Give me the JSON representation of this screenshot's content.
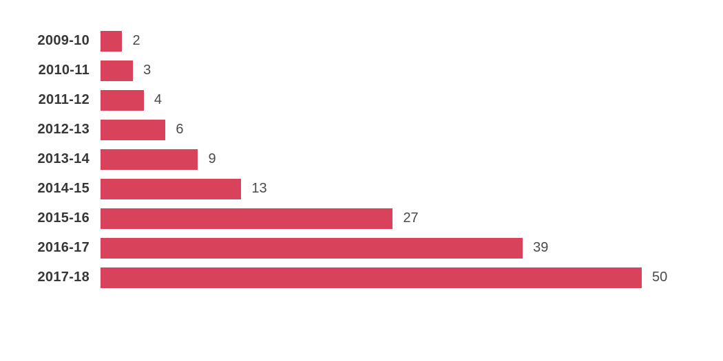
{
  "chart_data": {
    "type": "bar",
    "orientation": "horizontal",
    "title": "",
    "xlabel": "",
    "ylabel": "",
    "categories": [
      "2009-10",
      "2010-11",
      "2011-12",
      "2012-13",
      "2013-14",
      "2014-15",
      "2015-16",
      "2016-17",
      "2017-18"
    ],
    "values": [
      2,
      3,
      4,
      6,
      9,
      13,
      27,
      39,
      50
    ],
    "xlim": [
      0,
      50
    ],
    "grid": false,
    "legend": false,
    "data_labels": "outside-end"
  },
  "colors": {
    "bar": "#d8425a",
    "category_label": "#373737",
    "value_label": "#4a4a4a",
    "background": "#ffffff"
  }
}
